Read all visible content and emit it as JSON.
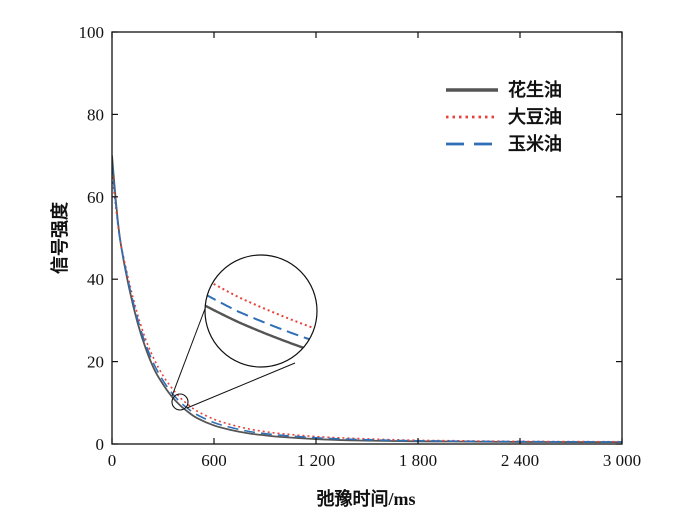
{
  "chart_data": {
    "type": "line",
    "title": "",
    "xlabel": "弛豫时间/ms",
    "ylabel": "信号强度",
    "xlim": [
      0,
      3000
    ],
    "ylim": [
      0,
      100
    ],
    "x_ticks": [
      0,
      600,
      1200,
      1800,
      2400,
      3000
    ],
    "x_tick_labels": [
      "0",
      "600",
      "1 200",
      "1 800",
      "2 400",
      "3 000"
    ],
    "y_ticks": [
      0,
      20,
      40,
      60,
      80,
      100
    ],
    "y_tick_labels": [
      "0",
      "20",
      "40",
      "60",
      "80",
      "100"
    ],
    "grid": false,
    "legend_position": "top-right",
    "series": [
      {
        "name": "花生油",
        "color": "#555555",
        "style": "solid",
        "x": [
          0,
          25,
          50,
          100,
          150,
          200,
          250,
          300,
          350,
          400,
          450,
          500,
          600,
          700,
          800,
          900,
          1000,
          1200,
          1400,
          1600,
          1800,
          2000,
          2200,
          2400,
          2600,
          2800,
          3000
        ],
        "y": [
          70,
          58,
          49,
          38,
          29.5,
          23,
          18,
          14.5,
          11.6,
          9.4,
          7.7,
          6.3,
          4.5,
          3.4,
          2.6,
          2.1,
          1.7,
          1.2,
          0.9,
          0.75,
          0.65,
          0.6,
          0.55,
          0.5,
          0.48,
          0.46,
          0.45
        ]
      },
      {
        "name": "大豆油",
        "color": "#e8413c",
        "style": "dotted",
        "x": [
          0,
          25,
          50,
          100,
          150,
          200,
          250,
          300,
          350,
          400,
          450,
          500,
          600,
          700,
          800,
          900,
          1000,
          1200,
          1400,
          1600,
          1800,
          2000,
          2200,
          2400,
          2600,
          2800,
          3000
        ],
        "y": [
          66,
          56.5,
          49,
          39.5,
          31.5,
          25.2,
          20.4,
          16.6,
          13.7,
          11.3,
          9.5,
          8.0,
          6.0,
          4.7,
          3.7,
          3.0,
          2.5,
          1.8,
          1.4,
          1.1,
          0.9,
          0.8,
          0.7,
          0.65,
          0.6,
          0.58,
          0.55
        ]
      },
      {
        "name": "玉米油",
        "color": "#2f6fb5",
        "style": "dashed",
        "x": [
          0,
          25,
          50,
          100,
          150,
          200,
          250,
          300,
          350,
          400,
          450,
          500,
          600,
          700,
          800,
          900,
          1000,
          1200,
          1400,
          1600,
          1800,
          2000,
          2200,
          2400,
          2600,
          2800,
          3000
        ],
        "y": [
          68,
          57.2,
          49,
          38.7,
          30.4,
          24.0,
          19.1,
          15.4,
          12.5,
          10.2,
          8.5,
          7.1,
          5.2,
          4.0,
          3.1,
          2.5,
          2.1,
          1.5,
          1.15,
          0.92,
          0.78,
          0.7,
          0.62,
          0.58,
          0.54,
          0.52,
          0.5
        ]
      }
    ],
    "inset": {
      "description": "magnified view",
      "center": [
        420,
        10
      ],
      "x_range": [
        370,
        470
      ],
      "y_range": [
        6,
        14.5
      ]
    }
  }
}
